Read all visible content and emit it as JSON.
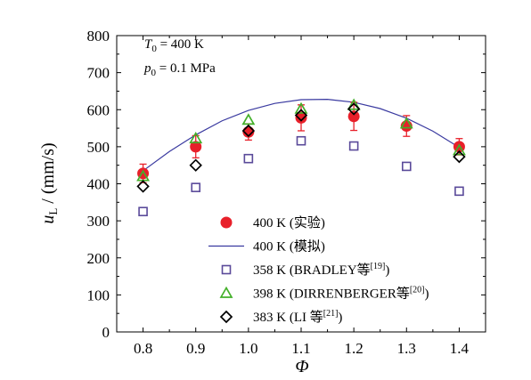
{
  "chart_data": {
    "type": "scatter",
    "xlabel_sym": "Φ",
    "ylabel_sym": "u",
    "ylabel_sub": "L",
    "ylabel_unit": " / (mm/s)",
    "xlim": [
      0.75,
      1.45
    ],
    "ylim": [
      0,
      800
    ],
    "xticks": [
      "0.8",
      "0.9",
      "1.0",
      "1.1",
      "1.2",
      "1.3",
      "1.4"
    ],
    "yticks": [
      "0",
      "100",
      "200",
      "300",
      "400",
      "500",
      "600",
      "700",
      "800"
    ],
    "conditions": [
      {
        "sym": "T",
        "sub": "0",
        "rest": " = 400 K"
      },
      {
        "sym": "p",
        "sub": "0",
        "rest": " = 0.1 MPa"
      }
    ],
    "series": [
      {
        "name": "400 K (实验)",
        "marker": "circle-filled",
        "color": "#e8202a",
        "x": [
          0.8,
          0.9,
          1.0,
          1.1,
          1.2,
          1.3,
          1.4
        ],
        "y": [
          428,
          500,
          540,
          578,
          582,
          556,
          500
        ],
        "err": [
          25,
          30,
          22,
          35,
          38,
          28,
          22
        ]
      },
      {
        "name": "400 K (模拟)",
        "marker": "line",
        "color": "#3a3aa0",
        "x": [
          0.8,
          0.85,
          0.9,
          0.95,
          1.0,
          1.05,
          1.1,
          1.15,
          1.2,
          1.25,
          1.3,
          1.35,
          1.4
        ],
        "y": [
          435,
          487,
          532,
          570,
          598,
          617,
          627,
          628,
          620,
          603,
          577,
          542,
          498
        ]
      },
      {
        "name": "358 K (BRADLEY等",
        "ref": "[19]",
        "marker": "square-open",
        "color": "#5a4a9a",
        "x": [
          0.8,
          0.9,
          1.0,
          1.1,
          1.2,
          1.3,
          1.4
        ],
        "y": [
          325,
          390,
          468,
          516,
          502,
          447,
          380
        ]
      },
      {
        "name": "398 K (DIRRENBERGER等",
        "ref": "[20]",
        "marker": "triangle-open",
        "color": "#43b02a",
        "x": [
          0.8,
          0.9,
          1.0,
          1.1,
          1.2,
          1.3,
          1.4
        ],
        "y": [
          420,
          522,
          572,
          602,
          612,
          562,
          490
        ]
      },
      {
        "name": "383 K (LI 等",
        "ref": "[21]",
        "marker": "diamond-open",
        "color": "#000000",
        "x": [
          0.8,
          0.9,
          1.0,
          1.1,
          1.2,
          1.3,
          1.4
        ],
        "y": [
          393,
          450,
          543,
          585,
          602,
          null,
          473
        ]
      }
    ]
  }
}
